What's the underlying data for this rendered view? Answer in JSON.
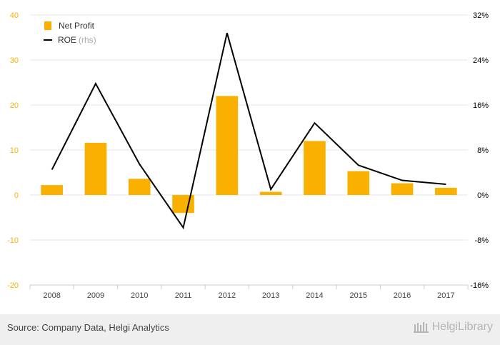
{
  "chart_data": {
    "type": "bar",
    "categories": [
      "2008",
      "2009",
      "2010",
      "2011",
      "2012",
      "2013",
      "2014",
      "2015",
      "2016",
      "2017"
    ],
    "series": [
      {
        "name": "Net Profit",
        "type": "bar",
        "axis": "left",
        "color": "#f9b000",
        "values": [
          2.2,
          11.6,
          3.6,
          -4.0,
          22.0,
          0.7,
          12.0,
          5.3,
          2.6,
          1.6
        ]
      },
      {
        "name": "ROE",
        "type": "line",
        "axis": "right",
        "color": "#000000",
        "values": [
          4.5,
          19.8,
          5.5,
          -5.8,
          28.8,
          1.0,
          12.8,
          5.3,
          2.6,
          1.9
        ]
      }
    ],
    "y_left": {
      "min": -20,
      "max": 40,
      "ticks": [
        "40",
        "30",
        "20",
        "10",
        "0",
        "-10",
        "-20"
      ],
      "tick_values": [
        40,
        30,
        20,
        10,
        0,
        -10,
        -20
      ],
      "color": "#f9b000"
    },
    "y_right": {
      "min": -16,
      "max": 32,
      "ticks": [
        "32%",
        "24%",
        "16%",
        "8%",
        "0%",
        "-8%",
        "-16%"
      ],
      "tick_values": [
        32,
        24,
        16,
        8,
        0,
        -8,
        -16
      ]
    },
    "legend": {
      "placement": "top-left",
      "entries": [
        "Net Profit",
        "ROE"
      ],
      "rhs_note": "(rhs)"
    },
    "grid": true
  },
  "footer": {
    "source": "Source: Company Data, Helgi Analytics",
    "brand": "HelgiLibrary",
    "brand_icon": "library-icon"
  }
}
